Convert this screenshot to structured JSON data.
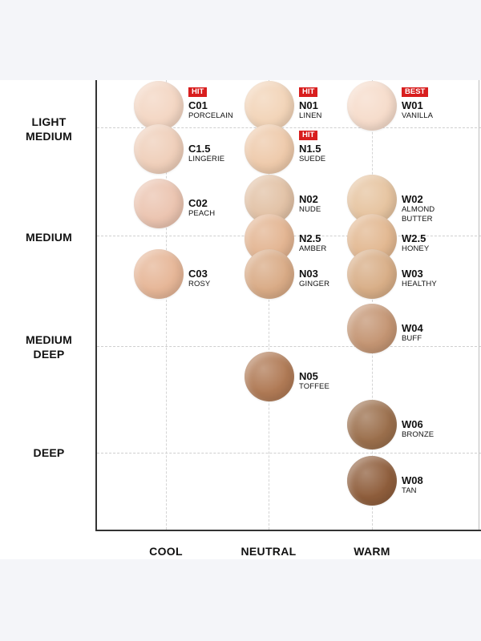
{
  "y_axis": [
    {
      "line1": "LIGHT",
      "line2": "MEDIUM"
    },
    {
      "line1": "MEDIUM",
      "line2": ""
    },
    {
      "line1": "MEDIUM",
      "line2": "DEEP"
    },
    {
      "line1": "DEEP",
      "line2": ""
    }
  ],
  "x_axis": [
    "COOL",
    "NEUTRAL",
    "WARM"
  ],
  "shades": [
    {
      "code": "C01",
      "name": "PORCELAIN",
      "name2": "",
      "badge": "HIT",
      "color": "#f3d6c3"
    },
    {
      "code": "C1.5",
      "name": "LINGERIE",
      "name2": "",
      "badge": "",
      "color": "#efcfba"
    },
    {
      "code": "C02",
      "name": "PEACH",
      "name2": "",
      "badge": "",
      "color": "#ebc4b0"
    },
    {
      "code": "C03",
      "name": "ROSY",
      "name2": "",
      "badge": "",
      "color": "#e6b697"
    },
    {
      "code": "N01",
      "name": "LINEN",
      "name2": "",
      "badge": "HIT",
      "color": "#f2d4b8"
    },
    {
      "code": "N1.5",
      "name": "SUEDE",
      "name2": "",
      "badge": "HIT",
      "color": "#eecaab"
    },
    {
      "code": "N02",
      "name": "NUDE",
      "name2": "",
      "badge": "",
      "color": "#e2c2a6"
    },
    {
      "code": "N2.5",
      "name": "AMBER",
      "name2": "",
      "badge": "",
      "color": "#e3b592"
    },
    {
      "code": "N03",
      "name": "GINGER",
      "name2": "",
      "badge": "",
      "color": "#d9ab86"
    },
    {
      "code": "N05",
      "name": "TOFFEE",
      "name2": "",
      "badge": "",
      "color": "#b07a55"
    },
    {
      "code": "W01",
      "name": "VANILLA",
      "name2": "",
      "badge": "BEST",
      "color": "#f6dccb"
    },
    {
      "code": "W02",
      "name": "ALMOND",
      "name2": "BUTTER",
      "badge": "",
      "color": "#e6c4a0"
    },
    {
      "code": "W2.5",
      "name": "HONEY",
      "name2": "",
      "badge": "",
      "color": "#e2b891"
    },
    {
      "code": "W03",
      "name": "HEALTHY",
      "name2": "",
      "badge": "",
      "color": "#d8ae87"
    },
    {
      "code": "W04",
      "name": "BUFF",
      "name2": "",
      "badge": "",
      "color": "#c49573"
    },
    {
      "code": "W06",
      "name": "BRONZE",
      "name2": "",
      "badge": "",
      "color": "#9b6f4c"
    },
    {
      "code": "W08",
      "name": "TAN",
      "name2": "",
      "badge": "",
      "color": "#8f5e3c"
    }
  ]
}
